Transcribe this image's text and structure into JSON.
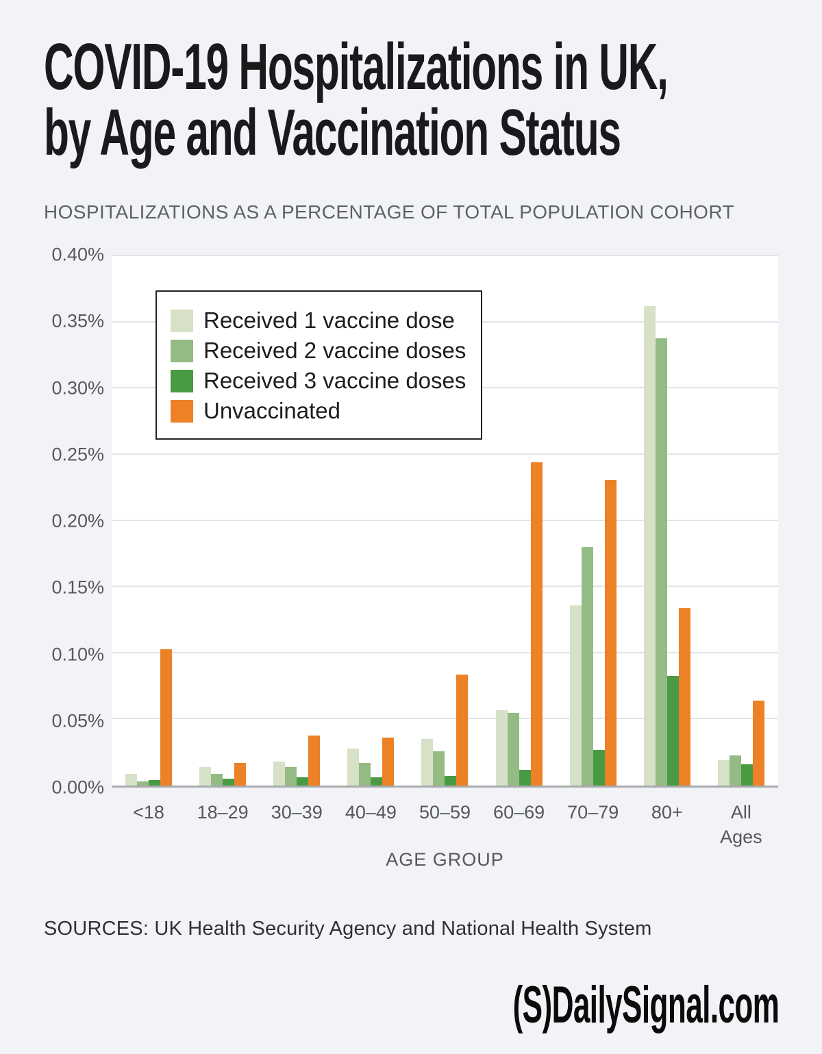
{
  "page": {
    "background": "#f2f3f6"
  },
  "header": {
    "title_line1": "COVID-19 Hospitalizations in UK,",
    "title_line2": "by Age and Vaccination Status",
    "subtitle": "HOSPITALIZATIONS AS A PERCENTAGE OF TOTAL POPULATION COHORT"
  },
  "chart_data": {
    "type": "bar",
    "title": "COVID-19 Hospitalizations in UK, by Age and Vaccination Status",
    "subtitle": "Hospitalizations as a percentage of total population cohort",
    "categories": [
      "<18",
      "18–29",
      "30–39",
      "40–49",
      "50–59",
      "60–69",
      "70–79",
      "80+",
      "All Ages"
    ],
    "series": [
      {
        "name": "Received 1 vaccine dose",
        "color": "#d6e1c8",
        "values": [
          0.009,
          0.014,
          0.018,
          0.028,
          0.035,
          0.057,
          0.136,
          0.362,
          0.019
        ]
      },
      {
        "name": "Received 2 vaccine doses",
        "color": "#94bb83",
        "values": [
          0.003,
          0.009,
          0.014,
          0.017,
          0.026,
          0.055,
          0.18,
          0.338,
          0.023
        ]
      },
      {
        "name": "Received 3 vaccine doses",
        "color": "#4a9a44",
        "values": [
          0.004,
          0.005,
          0.006,
          0.006,
          0.007,
          0.012,
          0.027,
          0.083,
          0.016
        ]
      },
      {
        "name": "Unvaccinated",
        "color": "#ec8125",
        "values": [
          0.103,
          0.017,
          0.038,
          0.036,
          0.084,
          0.244,
          0.231,
          0.134,
          0.064
        ]
      }
    ],
    "xlabel": "AGE GROUP",
    "ylabel": "",
    "ylim": [
      0,
      0.4
    ],
    "ytick_step": 0.05,
    "ytick_labels": [
      "0.40%",
      "0.35%",
      "0.30%",
      "0.25%",
      "0.20%",
      "0.15%",
      "0.10%",
      "0.05%",
      "0.00%"
    ],
    "grid": true,
    "legend_position": "upper-left-inside"
  },
  "footer": {
    "sources": "SOURCES: UK Health Security Agency and National Health System",
    "brand": "(S)DailySignal.com"
  }
}
